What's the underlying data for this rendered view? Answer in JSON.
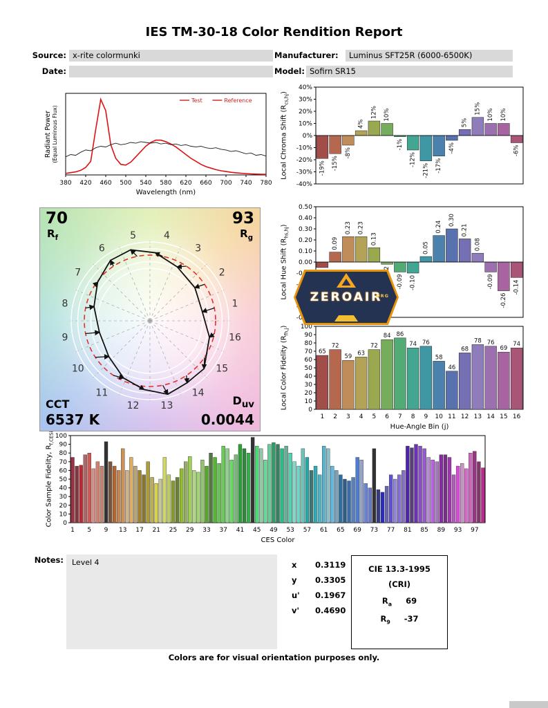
{
  "title": "IES TM-30-18 Color Rendition Report",
  "header": {
    "source_label": "Source:",
    "source_value": "x-rite colormunki",
    "manufacturer_label": "Manufacturer:",
    "manufacturer_value": "Luminus SFT25R (6000-6500K)",
    "date_label": "Date:",
    "date_value": "",
    "model_label": "Model:",
    "model_value": "Sofirn SR15"
  },
  "cvg": {
    "rf_value": "70",
    "rf_base": "R",
    "rf_sub": "f",
    "rg_value": "93",
    "rg_base": "R",
    "rg_sub": "g",
    "cct_label": "CCT",
    "cct_value": "6537 K",
    "duv_base": "D",
    "duv_sub": "uv",
    "duv_value": "0.0044"
  },
  "watermark": {
    "text": "ZEROAIR",
    "org": "ORG"
  },
  "notes": {
    "label": "Notes:",
    "content": "Level 4"
  },
  "chromaticity": {
    "rows": [
      {
        "label": "x",
        "value": "0.3119"
      },
      {
        "label": "y",
        "value": "0.3305"
      },
      {
        "label": "u'",
        "value": "0.1967"
      },
      {
        "label": "v'",
        "value": "0.4690"
      }
    ]
  },
  "cie": {
    "title": "CIE 13.3-1995",
    "subtitle": "(CRI)",
    "rows": [
      {
        "base": "R",
        "sub": "a",
        "value": "69"
      },
      {
        "base": "R",
        "sub": "9",
        "value": "-37"
      }
    ]
  },
  "footer": "Colors are for visual orientation purposes only.",
  "hue_bin_colors": [
    "#a14d49",
    "#b5684e",
    "#c08c5a",
    "#b3a356",
    "#9aa84f",
    "#76ad5c",
    "#52ab74",
    "#43a693",
    "#3f97a5",
    "#4a82ad",
    "#5a71b0",
    "#7570b4",
    "#8f7cba",
    "#9c6fae",
    "#a764a0",
    "#a85577"
  ],
  "chart_data": [
    {
      "id": "spd",
      "type": "line",
      "xlabel": "Wavelength (nm)",
      "ylabel_line1": "Radiant Power",
      "ylabel_line2": "(Equal Luminous Flux)",
      "x_start": 380,
      "x_step": 10,
      "xticks": [
        380,
        420,
        460,
        500,
        540,
        580,
        620,
        660,
        700,
        740,
        780
      ],
      "ylim": [
        0,
        1.08
      ],
      "legend": [
        {
          "label": "Test",
          "color": "#cc2222"
        },
        {
          "label": "Reference",
          "color": "#cc2222"
        }
      ],
      "series": [
        {
          "name": "Test",
          "color": "#dd1111",
          "width": 1.6,
          "values": [
            0.02,
            0.03,
            0.04,
            0.06,
            0.1,
            0.18,
            0.6,
            1.0,
            0.85,
            0.4,
            0.22,
            0.14,
            0.13,
            0.17,
            0.24,
            0.31,
            0.38,
            0.43,
            0.46,
            0.46,
            0.44,
            0.41,
            0.37,
            0.32,
            0.27,
            0.22,
            0.18,
            0.14,
            0.11,
            0.09,
            0.07,
            0.055,
            0.045,
            0.035,
            0.028,
            0.022,
            0.018,
            0.014,
            0.011,
            0.009,
            0.007
          ]
        },
        {
          "name": "Reference",
          "color": "#1a1a1a",
          "width": 0.9,
          "values": [
            0.24,
            0.27,
            0.26,
            0.3,
            0.33,
            0.32,
            0.36,
            0.38,
            0.37,
            0.4,
            0.42,
            0.4,
            0.41,
            0.43,
            0.42,
            0.44,
            0.43,
            0.42,
            0.43,
            0.41,
            0.42,
            0.4,
            0.41,
            0.39,
            0.4,
            0.38,
            0.37,
            0.38,
            0.36,
            0.35,
            0.36,
            0.34,
            0.33,
            0.31,
            0.32,
            0.3,
            0.28,
            0.29,
            0.26,
            0.27,
            0.25
          ]
        }
      ]
    },
    {
      "id": "chroma",
      "type": "bar",
      "ylabel": {
        "pre": "Local Chroma Shift (R",
        "sub": "cs,hj",
        "post": ")"
      },
      "values": [
        -19,
        -15,
        -8,
        4,
        12,
        10,
        -1,
        -12,
        -21,
        -17,
        -4,
        5,
        15,
        10,
        10,
        -6
      ],
      "ylim": [
        -40,
        40
      ],
      "ytick_step": 10,
      "ytick_decimals": 0,
      "ytick_suffix": "%",
      "show_labels": true,
      "label_decimals": 0,
      "label_suffix": "%",
      "label_rotate": true
    },
    {
      "id": "hue",
      "type": "bar",
      "ylabel": {
        "pre": "Local Hue Shift (R",
        "sub": "hs,hj",
        "post": ")"
      },
      "values": [
        -0.05,
        0.09,
        0.23,
        0.23,
        0.13,
        -0.02,
        -0.09,
        -0.1,
        0.05,
        0.24,
        0.3,
        0.21,
        0.08,
        -0.09,
        -0.26,
        -0.14
      ],
      "ylim": [
        -0.5,
        0.5
      ],
      "ytick_step": 0.1,
      "ytick_decimals": 2,
      "show_labels": true,
      "label_decimals": 2,
      "label_rotate": true
    },
    {
      "id": "fidelity",
      "type": "bar",
      "ylabel": {
        "pre": "Local Color Fidelity (R",
        "sub": "fh,j",
        "post": ")"
      },
      "xlabel": "Hue-Angle Bin (j)",
      "values": [
        65,
        72,
        59,
        63,
        72,
        84,
        86,
        74,
        76,
        58,
        46,
        68,
        78,
        76,
        69,
        74
      ],
      "categories": [
        1,
        2,
        3,
        4,
        5,
        6,
        7,
        8,
        9,
        10,
        11,
        12,
        13,
        14,
        15,
        16
      ],
      "ylim": [
        0,
        100
      ],
      "ytick_step": 10,
      "ytick_decimals": 0,
      "show_labels": true,
      "label_decimals": 0,
      "label_rotate": false
    },
    {
      "id": "ces",
      "type": "bar",
      "ylabel": {
        "pre": "Color Sample Fidelity, R",
        "sub": "f,CESi",
        "post": ""
      },
      "xlabel": "CES Color",
      "values": [
        75,
        65,
        66,
        78,
        80,
        62,
        70,
        65,
        93,
        70,
        65,
        60,
        85,
        60,
        75,
        65,
        60,
        55,
        70,
        52,
        45,
        50,
        75,
        55,
        48,
        52,
        62,
        70,
        76,
        60,
        58,
        72,
        65,
        80,
        75,
        68,
        88,
        85,
        72,
        78,
        90,
        85,
        80,
        98,
        88,
        85,
        72,
        90,
        92,
        90,
        85,
        88,
        80,
        70,
        65,
        85,
        75,
        60,
        65,
        55,
        88,
        85,
        65,
        60,
        55,
        50,
        48,
        52,
        75,
        72,
        45,
        40,
        85,
        38,
        35,
        42,
        55,
        50,
        55,
        60,
        88,
        86,
        90,
        88,
        85,
        75,
        72,
        70,
        78,
        78,
        75,
        55,
        65,
        68,
        62,
        80,
        82,
        70,
        63
      ],
      "xtick_every": 4,
      "ylim": [
        0,
        100
      ],
      "ytick_step": 10,
      "ytick_decimals": 0,
      "show_labels": false
    }
  ]
}
